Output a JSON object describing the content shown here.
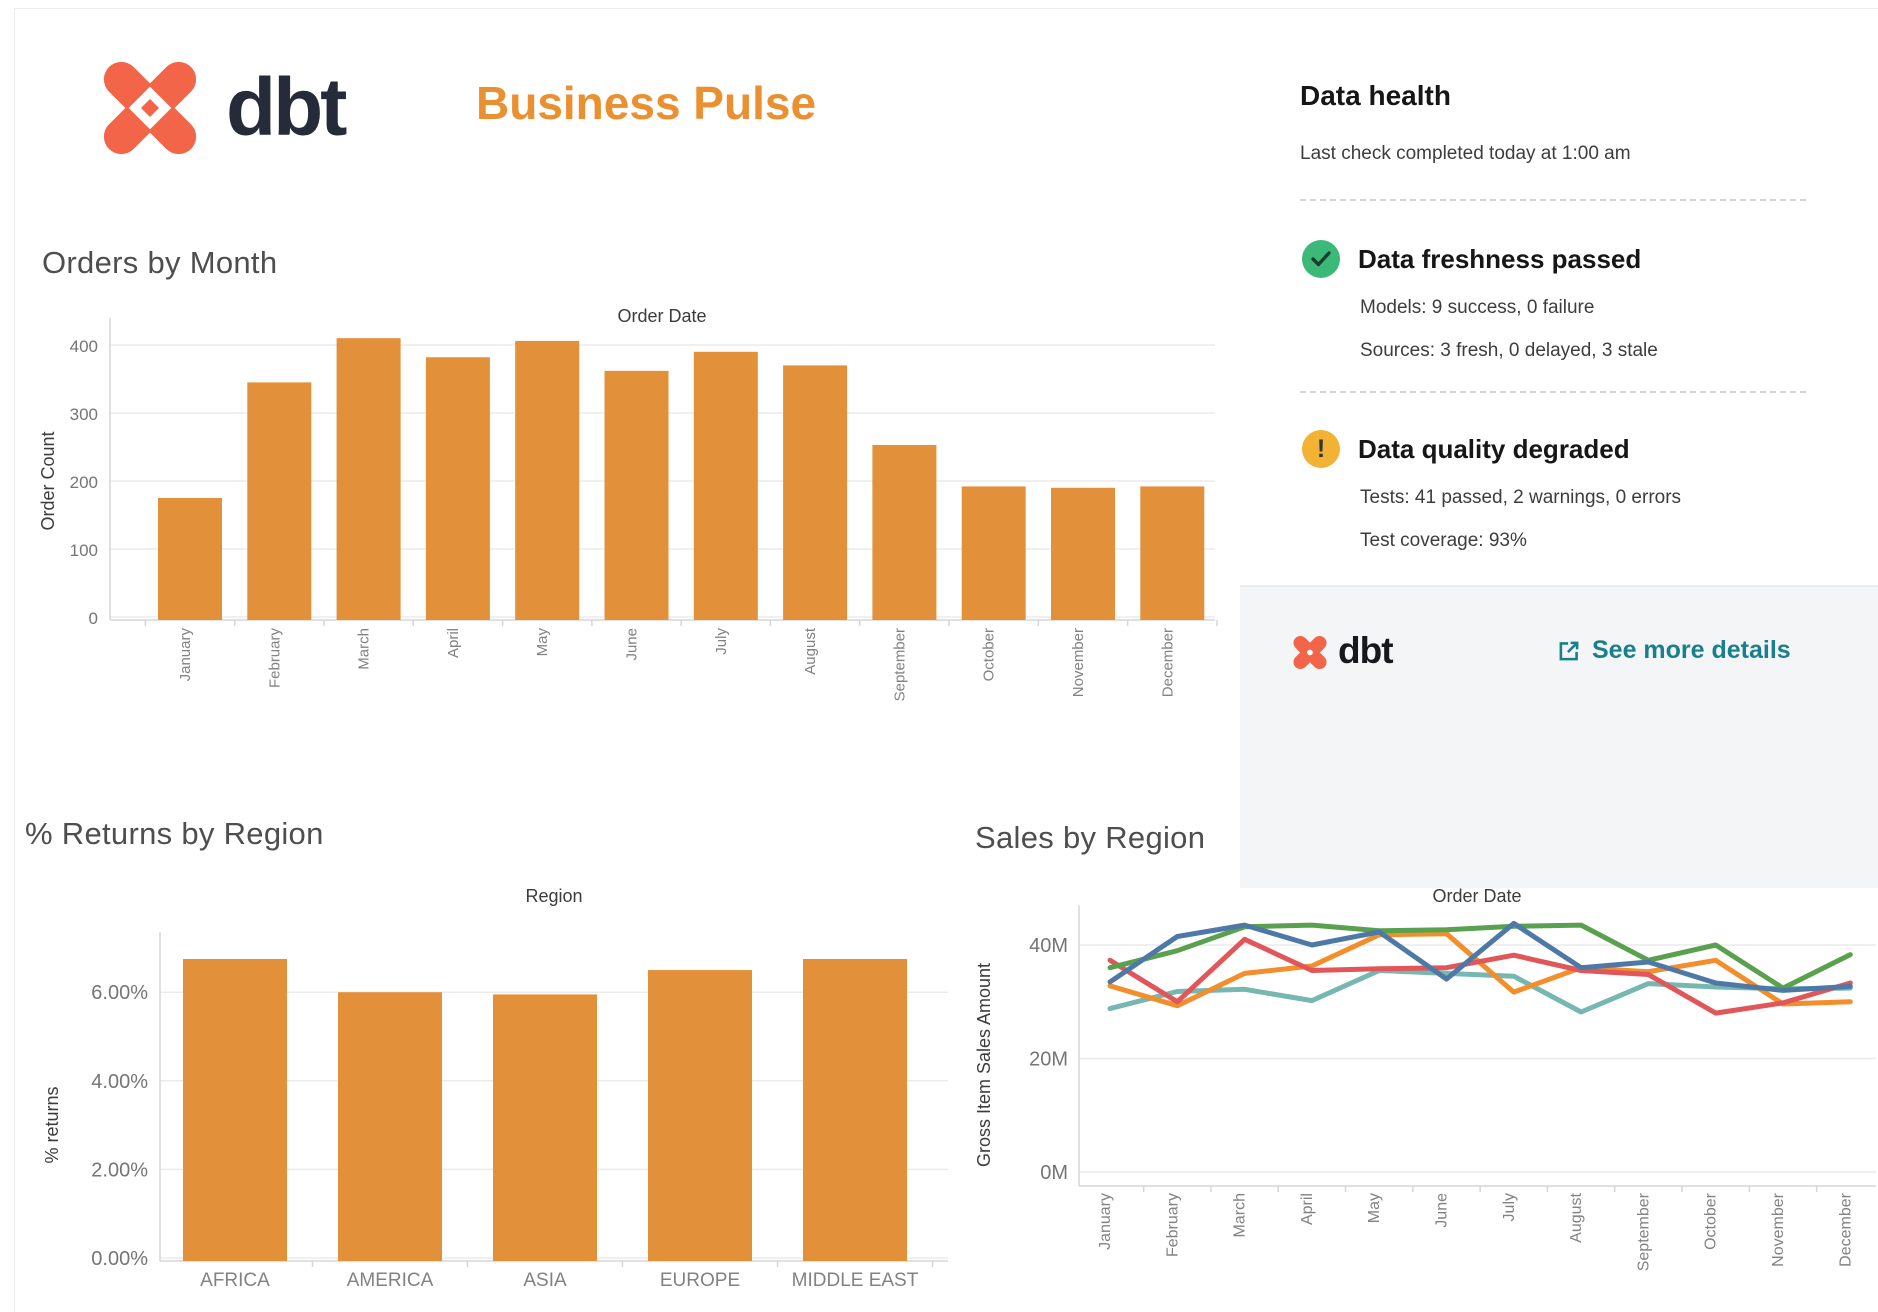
{
  "header": {
    "logo_text": "dbt",
    "title": "Business Pulse"
  },
  "data_health": {
    "title": "Data health",
    "subtitle": "Last check completed today at 1:00 am",
    "freshness": {
      "status_label": "Data freshness passed",
      "models": "Models: 9 success, 0 failure",
      "sources": "Sources: 3 fresh, 0 delayed, 3 stale"
    },
    "quality": {
      "status_label": "Data quality degraded",
      "exclamation": "!",
      "tests": "Tests: 41 passed, 2 warnings, 0 errors",
      "coverage": "Test coverage: 93%"
    },
    "footer": {
      "logo_text": "dbt",
      "link_label": "See more details"
    }
  },
  "colors": {
    "bar_orange": "#e3903a",
    "dbt_orange": "#f26549",
    "navy": "#262b3a",
    "title_orange": "#ea9030",
    "teal_link": "#1a7f8c",
    "status_green": "#3cb879",
    "status_amber": "#f2b233"
  },
  "chart_data": [
    {
      "id": "orders",
      "type": "bar",
      "title": "Orders by Month",
      "xaxis_title": "Order Date",
      "ylabel": "Order Count",
      "categories": [
        "January",
        "February",
        "March",
        "April",
        "May",
        "June",
        "July",
        "August",
        "September",
        "October",
        "November",
        "December"
      ],
      "values": [
        175,
        345,
        410,
        382,
        406,
        362,
        390,
        370,
        253,
        192,
        190,
        192
      ],
      "yticks": [
        0,
        100,
        200,
        300,
        400
      ],
      "ytick_labels": [
        "0",
        "100",
        "200",
        "300",
        "400"
      ],
      "ylim": [
        0,
        440
      ],
      "grid": true,
      "legend": "none",
      "bar_color": "#e3903a"
    },
    {
      "id": "returns",
      "type": "bar",
      "title": "% Returns by Region",
      "xaxis_title": "Region",
      "ylabel": "% returns",
      "categories": [
        "AFRICA",
        "AMERICA",
        "ASIA",
        "EUROPE",
        "MIDDLE EAST"
      ],
      "values": [
        6.75,
        6.0,
        5.95,
        6.5,
        6.75
      ],
      "yticks": [
        0,
        2,
        4,
        6
      ],
      "ytick_labels": [
        "0.00%",
        "2.00%",
        "4.00%",
        "6.00%"
      ],
      "ylim": [
        0,
        7.35
      ],
      "grid": true,
      "legend": "none",
      "bar_color": "#e3903a"
    },
    {
      "id": "sales",
      "type": "line",
      "title": "Sales by Region",
      "xaxis_title": "Order Date",
      "ylabel": "Gross Item Sales Amount",
      "x": [
        "January",
        "February",
        "March",
        "April",
        "May",
        "June",
        "July",
        "August",
        "September",
        "October",
        "November",
        "December"
      ],
      "yticks": [
        0,
        20,
        40
      ],
      "ytick_labels": [
        "0M",
        "20M",
        "40M"
      ],
      "ylim": [
        0,
        47
      ],
      "grid": true,
      "legend": "none",
      "series": [
        {
          "name": "teal",
          "color": "#76b7b2",
          "values": [
            28.8,
            31.8,
            32.2,
            30.2,
            35.5,
            35.0,
            34.5,
            28.2,
            33.2,
            32.6,
            32.3,
            32.4
          ]
        },
        {
          "name": "orange",
          "color": "#f28e2b",
          "values": [
            32.8,
            29.3,
            35.0,
            36.3,
            41.8,
            42.0,
            31.7,
            36.0,
            35.3,
            37.3,
            29.6,
            30.0
          ]
        },
        {
          "name": "red",
          "color": "#e15759",
          "values": [
            37.3,
            30.0,
            41.0,
            35.5,
            35.8,
            36.0,
            38.2,
            35.5,
            34.8,
            28.0,
            29.8,
            33.3
          ]
        },
        {
          "name": "green",
          "color": "#59a14f",
          "values": [
            36.0,
            39.0,
            43.2,
            43.5,
            42.5,
            42.7,
            43.3,
            43.5,
            37.3,
            40.0,
            32.4,
            38.3
          ]
        },
        {
          "name": "blue",
          "color": "#4e79a7",
          "values": [
            33.5,
            41.5,
            43.5,
            40.0,
            42.3,
            34.0,
            43.8,
            36.0,
            37.0,
            33.3,
            32.0,
            32.7
          ]
        }
      ]
    }
  ]
}
